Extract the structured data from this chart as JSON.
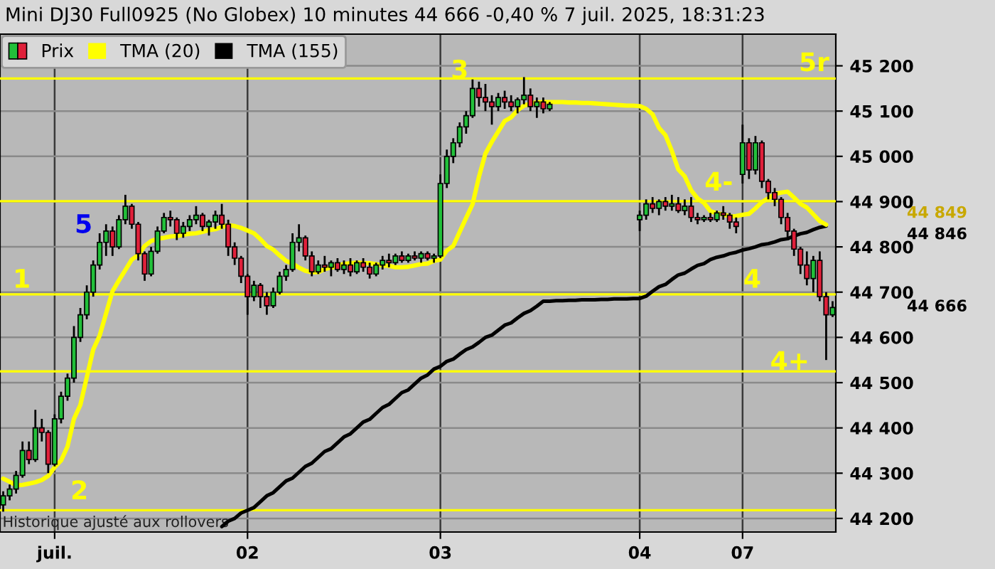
{
  "chart_data": {
    "type": "candlestick",
    "title": "Mini DJ30 Full0925 (No Globex) 10 minutes 44 666 -0,40 % 7 juil. 2025, 18:31:23",
    "categories": [
      null,
      null,
      null,
      null,
      null,
      null,
      null,
      null,
      "juil.",
      null,
      null,
      null,
      null,
      null,
      null,
      null,
      null,
      null,
      null,
      null,
      null,
      null,
      null,
      null,
      null,
      null,
      null,
      null,
      null,
      null,
      null,
      null,
      null,
      null,
      null,
      null,
      null,
      null,
      "02",
      null,
      null,
      null,
      null,
      null,
      null,
      null,
      null,
      null,
      null,
      null,
      null,
      null,
      null,
      null,
      null,
      null,
      null,
      null,
      null,
      null,
      null,
      null,
      null,
      null,
      null,
      null,
      null,
      null,
      "03",
      null,
      null,
      null,
      null,
      null,
      null,
      null,
      null,
      null,
      null,
      null,
      null,
      null,
      null,
      null,
      null,
      null,
      null,
      null,
      null,
      null,
      null,
      null,
      null,
      null,
      null,
      null,
      null,
      null,
      null,
      "04",
      null,
      null,
      null,
      null,
      null,
      null,
      null,
      null,
      null,
      null,
      null,
      null,
      null,
      null,
      null,
      "07",
      null,
      null,
      null,
      null,
      null,
      null,
      null,
      null,
      null,
      null,
      null,
      null,
      null,
      null
    ],
    "series": [
      {
        "name": "Prix",
        "ohlc": [
          [
            44230,
            44260,
            44215,
            44250
          ],
          [
            44250,
            44275,
            44240,
            44265
          ],
          [
            44265,
            44305,
            44255,
            44295
          ],
          [
            44295,
            44370,
            44290,
            44350
          ],
          [
            44350,
            44370,
            44320,
            44330
          ],
          [
            44330,
            44440,
            44325,
            44400
          ],
          [
            44400,
            44420,
            44370,
            44390
          ],
          [
            44390,
            44395,
            44300,
            44320
          ],
          [
            44320,
            44430,
            44315,
            44420
          ],
          [
            44420,
            44480,
            44410,
            44470
          ],
          [
            44470,
            44520,
            44460,
            44510
          ],
          [
            44510,
            44625,
            44500,
            44600
          ],
          [
            44600,
            44665,
            44590,
            44650
          ],
          [
            44650,
            44715,
            44640,
            44700
          ],
          [
            44700,
            44770,
            44690,
            44760
          ],
          [
            44760,
            44830,
            44750,
            44810
          ],
          [
            44810,
            44850,
            44780,
            44835
          ],
          [
            44835,
            44845,
            44780,
            44800
          ],
          [
            44800,
            44870,
            44795,
            44860
          ],
          [
            44860,
            44915,
            44850,
            44890
          ],
          [
            44890,
            44895,
            44840,
            44850
          ],
          [
            44850,
            44855,
            44770,
            44785
          ],
          [
            44785,
            44790,
            44725,
            44740
          ],
          [
            44740,
            44800,
            44735,
            44790
          ],
          [
            44790,
            44845,
            44785,
            44835
          ],
          [
            44835,
            44875,
            44830,
            44865
          ],
          [
            44865,
            44880,
            44845,
            44860
          ],
          [
            44860,
            44865,
            44815,
            44830
          ],
          [
            44830,
            44855,
            44820,
            44845
          ],
          [
            44845,
            44870,
            44835,
            44860
          ],
          [
            44860,
            44890,
            44850,
            44870
          ],
          [
            44870,
            44875,
            44835,
            44845
          ],
          [
            44845,
            44860,
            44825,
            44855
          ],
          [
            44855,
            44880,
            44840,
            44870
          ],
          [
            44870,
            44895,
            44840,
            44850
          ],
          [
            44850,
            44860,
            44780,
            44800
          ],
          [
            44800,
            44810,
            44760,
            44775
          ],
          [
            44775,
            44780,
            44720,
            44735
          ],
          [
            44735,
            44740,
            44650,
            44690
          ],
          [
            44690,
            44725,
            44680,
            44715
          ],
          [
            44715,
            44720,
            44665,
            44690
          ],
          [
            44690,
            44700,
            44650,
            44670
          ],
          [
            44670,
            44710,
            44665,
            44700
          ],
          [
            44700,
            44745,
            44695,
            44735
          ],
          [
            44735,
            44760,
            44725,
            44750
          ],
          [
            44750,
            44830,
            44745,
            44810
          ],
          [
            44810,
            44850,
            44790,
            44820
          ],
          [
            44820,
            44825,
            44770,
            44780
          ],
          [
            44780,
            44790,
            44735,
            44745
          ],
          [
            44745,
            44770,
            44740,
            44760
          ],
          [
            44760,
            44780,
            44745,
            44755
          ],
          [
            44755,
            44770,
            44735,
            44765
          ],
          [
            44765,
            44775,
            44745,
            44750
          ],
          [
            44750,
            44770,
            44740,
            44760
          ],
          [
            44760,
            44775,
            44735,
            44745
          ],
          [
            44745,
            44770,
            44740,
            44765
          ],
          [
            44765,
            44775,
            44745,
            44755
          ],
          [
            44755,
            44765,
            44730,
            44740
          ],
          [
            44740,
            44765,
            44735,
            44760
          ],
          [
            44760,
            44780,
            44750,
            44770
          ],
          [
            44770,
            44785,
            44755,
            44765
          ],
          [
            44765,
            44785,
            44760,
            44780
          ],
          [
            44780,
            44790,
            44765,
            44770
          ],
          [
            44770,
            44785,
            44765,
            44780
          ],
          [
            44780,
            44790,
            44770,
            44775
          ],
          [
            44775,
            44790,
            44765,
            44785
          ],
          [
            44785,
            44790,
            44770,
            44775
          ],
          [
            44775,
            44785,
            44765,
            44780
          ],
          [
            44780,
            44960,
            44775,
            44940
          ],
          [
            44940,
            45015,
            44930,
            45000
          ],
          [
            45000,
            45040,
            44985,
            45030
          ],
          [
            45030,
            45075,
            45020,
            45065
          ],
          [
            45065,
            45100,
            45050,
            45090
          ],
          [
            45090,
            45170,
            45085,
            45150
          ],
          [
            45150,
            45165,
            45110,
            45130
          ],
          [
            45130,
            45160,
            45100,
            45120
          ],
          [
            45120,
            45135,
            45070,
            45110
          ],
          [
            45110,
            45140,
            45100,
            45130
          ],
          [
            45130,
            45145,
            45105,
            45120
          ],
          [
            45120,
            45135,
            45100,
            45110
          ],
          [
            45110,
            45130,
            45095,
            45125
          ],
          [
            45125,
            45175,
            45115,
            45135
          ],
          [
            45135,
            45150,
            45100,
            45110
          ],
          [
            45110,
            45130,
            45085,
            45120
          ],
          [
            45120,
            45130,
            45095,
            45105
          ],
          [
            45105,
            45120,
            45100,
            45115
          ],
          null,
          null,
          null,
          null,
          null,
          null,
          null,
          null,
          null,
          null,
          null,
          null,
          null,
          [
            44860,
            44880,
            44835,
            44870
          ],
          [
            44870,
            44905,
            44860,
            44895
          ],
          [
            44895,
            44910,
            44875,
            44885
          ],
          [
            44885,
            44905,
            44870,
            44900
          ],
          [
            44900,
            44910,
            44880,
            44890
          ],
          [
            44890,
            44915,
            44880,
            44895
          ],
          [
            44895,
            44910,
            44875,
            44880
          ],
          [
            44880,
            44905,
            44870,
            44890
          ],
          [
            44890,
            44910,
            44855,
            44865
          ],
          [
            44865,
            44875,
            44850,
            44860
          ],
          [
            44860,
            44870,
            44855,
            44865
          ],
          [
            44865,
            44875,
            44855,
            44860
          ],
          [
            44860,
            44880,
            44855,
            44875
          ],
          [
            44875,
            44890,
            44860,
            44870
          ],
          [
            44870,
            44875,
            44840,
            44855
          ],
          [
            44855,
            44865,
            44830,
            44845
          ],
          [
            44960,
            45070,
            44940,
            45030
          ],
          [
            45030,
            45040,
            44950,
            44970
          ],
          [
            44970,
            45045,
            44960,
            45030
          ],
          [
            45030,
            45035,
            44930,
            44945
          ],
          [
            44945,
            44950,
            44905,
            44920
          ],
          [
            44920,
            44930,
            44890,
            44905
          ],
          [
            44905,
            44910,
            44850,
            44865
          ],
          [
            44865,
            44875,
            44820,
            44835
          ],
          [
            44835,
            44840,
            44780,
            44795
          ],
          [
            44795,
            44800,
            44740,
            44760
          ],
          [
            44760,
            44790,
            44715,
            44730
          ],
          [
            44730,
            44780,
            44700,
            44770
          ],
          [
            44770,
            44790,
            44680,
            44690
          ],
          [
            44690,
            44700,
            44550,
            44650
          ],
          [
            44650,
            44680,
            44645,
            44666
          ]
        ]
      },
      {
        "name": "TMA (20)",
        "type": "line",
        "color": "#ffff00",
        "values": [
          44288,
          44281,
          44273,
          44274,
          44277,
          44280,
          44285,
          44294,
          44313,
          44328,
          44359,
          44420,
          44451,
          44512,
          44573,
          44604,
          44653,
          44702,
          44726,
          44749,
          44772,
          44782,
          44802,
          44813,
          44818,
          44820,
          44823,
          44824,
          44827,
          44829,
          44830,
          44833,
          44837,
          44839,
          44844,
          44848,
          44846,
          44842,
          44836,
          44830,
          44817,
          44802,
          44794,
          44781,
          44769,
          44763,
          44754,
          44747,
          44744,
          44744,
          44751,
          44754,
          44759,
          44762,
          44764,
          44765,
          44764,
          44764,
          44762,
          44759,
          44758,
          44755,
          44755,
          44756,
          44759,
          44762,
          44763,
          44769,
          44772,
          44792,
          44802,
          44833,
          44864,
          44894,
          44955,
          45006,
          45032,
          45055,
          45078,
          45086,
          45102,
          45112,
          45117,
          45119,
          45120,
          45120,
          45120,
          45120,
          45119,
          45119,
          45118,
          45118,
          45117,
          45116,
          45115,
          45114,
          45113,
          45112,
          45112,
          45111,
          45105,
          45093,
          45063,
          45047,
          45012,
          44971,
          44956,
          44925,
          44907,
          44897,
          44879,
          44874,
          44872,
          44867,
          44868,
          44871,
          44873,
          44885,
          44899,
          44907,
          44917,
          44920,
          44922,
          44909,
          44895,
          44887,
          44872,
          44857,
          44849,
          null
        ]
      },
      {
        "name": "TMA (155)",
        "type": "line",
        "color": "#000000",
        "values": [
          null,
          null,
          null,
          null,
          null,
          null,
          null,
          null,
          null,
          null,
          null,
          null,
          null,
          null,
          null,
          null,
          null,
          null,
          null,
          null,
          null,
          null,
          null,
          null,
          null,
          null,
          null,
          null,
          null,
          null,
          null,
          null,
          null,
          null,
          44182,
          44194,
          44200,
          44212,
          44218,
          44224,
          44237,
          44250,
          44257,
          44270,
          44283,
          44289,
          44302,
          44315,
          44322,
          44335,
          44348,
          44354,
          44367,
          44380,
          44387,
          44400,
          44413,
          44419,
          44432,
          44445,
          44452,
          44465,
          44478,
          44484,
          44497,
          44510,
          44517,
          44530,
          44536,
          44547,
          44552,
          44563,
          44573,
          44579,
          44589,
          44600,
          44605,
          44616,
          44627,
          44632,
          44643,
          44653,
          44659,
          44669,
          44680,
          44680,
          44681,
          44681,
          44682,
          44682,
          44683,
          44683,
          44683,
          44684,
          44684,
          44685,
          44685,
          44685,
          44686,
          44686,
          44691,
          44702,
          44712,
          44717,
          44728,
          44738,
          44742,
          44751,
          44759,
          44763,
          44772,
          44777,
          44780,
          44785,
          44788,
          44793,
          44796,
          44800,
          44805,
          44807,
          44811,
          44816,
          44818,
          44824,
          44829,
          44832,
          44838,
          44843,
          44846,
          null
        ]
      }
    ],
    "ref_lines": [
      {
        "axis": "y",
        "value": 45172,
        "color": "#ffff00"
      },
      {
        "axis": "y",
        "value": 44901,
        "color": "#ffff00"
      },
      {
        "axis": "y",
        "value": 44695,
        "color": "#ffff00"
      },
      {
        "axis": "y",
        "value": 44525,
        "color": "#ffff00"
      },
      {
        "axis": "y",
        "value": 44218,
        "color": "#ffff00"
      }
    ],
    "annotations": [
      "3",
      "5",
      "1",
      "44 849",
      "44 846",
      "44 666",
      "Historique ajusté aux rollovers",
      "5r",
      "4-",
      "4",
      "4+",
      "2"
    ],
    "ylim": [
      44170,
      45270
    ],
    "yticks": [
      {
        "value": 44200,
        "label": "44 200"
      },
      {
        "value": 44300,
        "label": "44 300"
      },
      {
        "value": 44400,
        "label": "44 400"
      },
      {
        "value": 44500,
        "label": "44 500"
      },
      {
        "value": 44600,
        "label": "44 600"
      },
      {
        "value": 44700,
        "label": "44 700"
      },
      {
        "value": 44800,
        "label": "44 800"
      },
      {
        "value": 44900,
        "label": "44 900"
      },
      {
        "value": 45000,
        "label": "45 000"
      },
      {
        "value": 45100,
        "label": "45 100"
      },
      {
        "value": 45200,
        "label": "45 200"
      }
    ],
    "grid": true,
    "legend": "top left"
  }
}
